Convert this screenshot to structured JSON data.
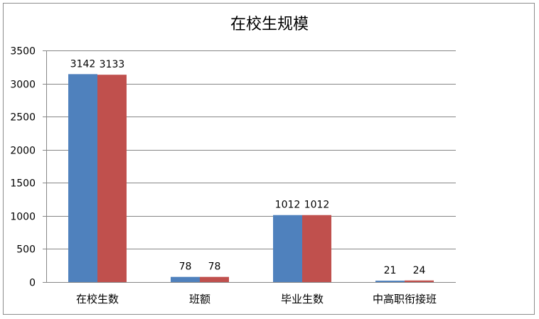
{
  "chart_data": {
    "type": "bar",
    "title": "在校生规模",
    "xlabel": "",
    "ylabel": "",
    "categories": [
      "在校生数",
      "班额",
      "毕业生数",
      "中高职衔接班"
    ],
    "series": [
      {
        "values": [
          3142,
          78,
          1012,
          21
        ],
        "color": "#4f81bd",
        "data_labels": [
          "3142",
          "78",
          "1012",
          "21"
        ]
      },
      {
        "values": [
          3133,
          78,
          1012,
          24
        ],
        "color": "#c0504d",
        "data_labels": [
          "3133",
          "78",
          "1012",
          "24"
        ]
      }
    ],
    "ylim": [
      0,
      3500
    ],
    "yticks": [
      "0",
      "500",
      "1000",
      "1500",
      "2000",
      "2500",
      "3000",
      "3500"
    ],
    "grid": true,
    "legend": "none"
  }
}
